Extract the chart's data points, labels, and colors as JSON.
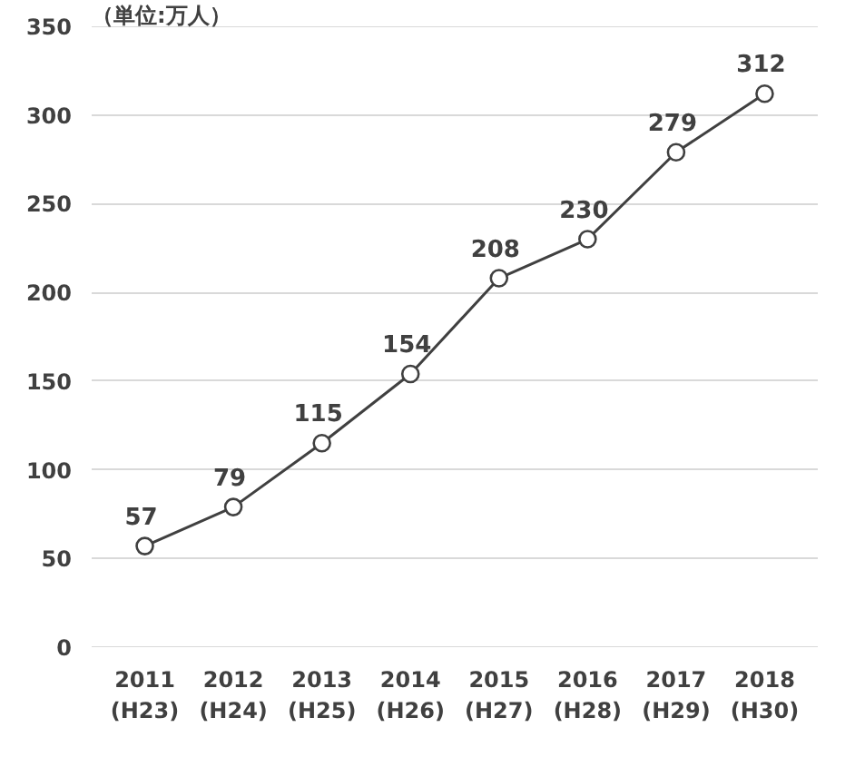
{
  "chart_data": {
    "type": "line",
    "categories": [
      "2011\n(H23)",
      "2012\n(H24)",
      "2013\n(H25)",
      "2014\n(H26)",
      "2015\n(H27)",
      "2016\n(H28)",
      "2017\n(H29)",
      "2018\n(H30)"
    ],
    "series": [
      {
        "color": "#404040",
        "values": [
          57,
          79,
          115,
          154,
          208,
          230,
          279,
          312
        ]
      }
    ],
    "ylim": [
      0,
      350
    ],
    "yticks": [
      0,
      50,
      100,
      150,
      200,
      250,
      300,
      350
    ],
    "grid": "y",
    "marker": "circle",
    "line_style": "solid",
    "data_labels": true,
    "annotations": [
      "（単位:万人）"
    ]
  }
}
